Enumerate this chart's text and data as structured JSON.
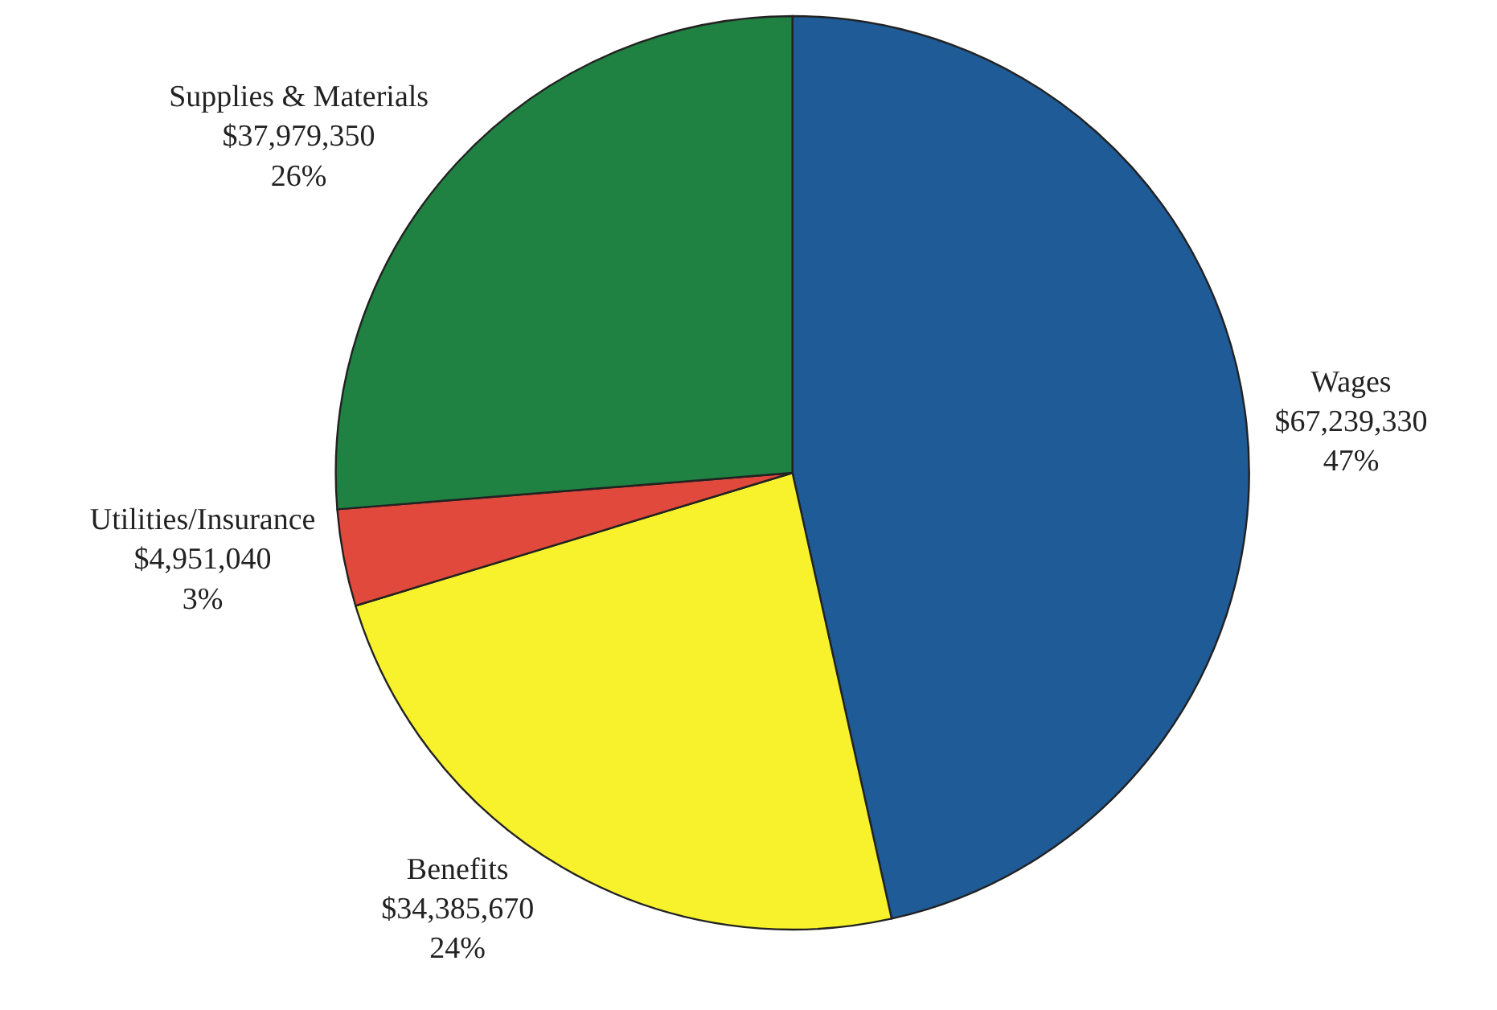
{
  "chart_data": {
    "type": "pie",
    "categories": [
      "Wages",
      "Benefits",
      "Utilities/Insurance",
      "Supplies & Materials"
    ],
    "values": [
      67239330,
      34385670,
      4951040,
      37979350
    ],
    "colors": [
      "#1f5b97",
      "#f7f22c",
      "#e0493c",
      "#1f8142"
    ],
    "value_labels": [
      "$67,239,330\n47%",
      "$34,385,670\n24%",
      "$4,951,040\n3%",
      "$37,979,350\n26%"
    ],
    "legend": false
  }
}
